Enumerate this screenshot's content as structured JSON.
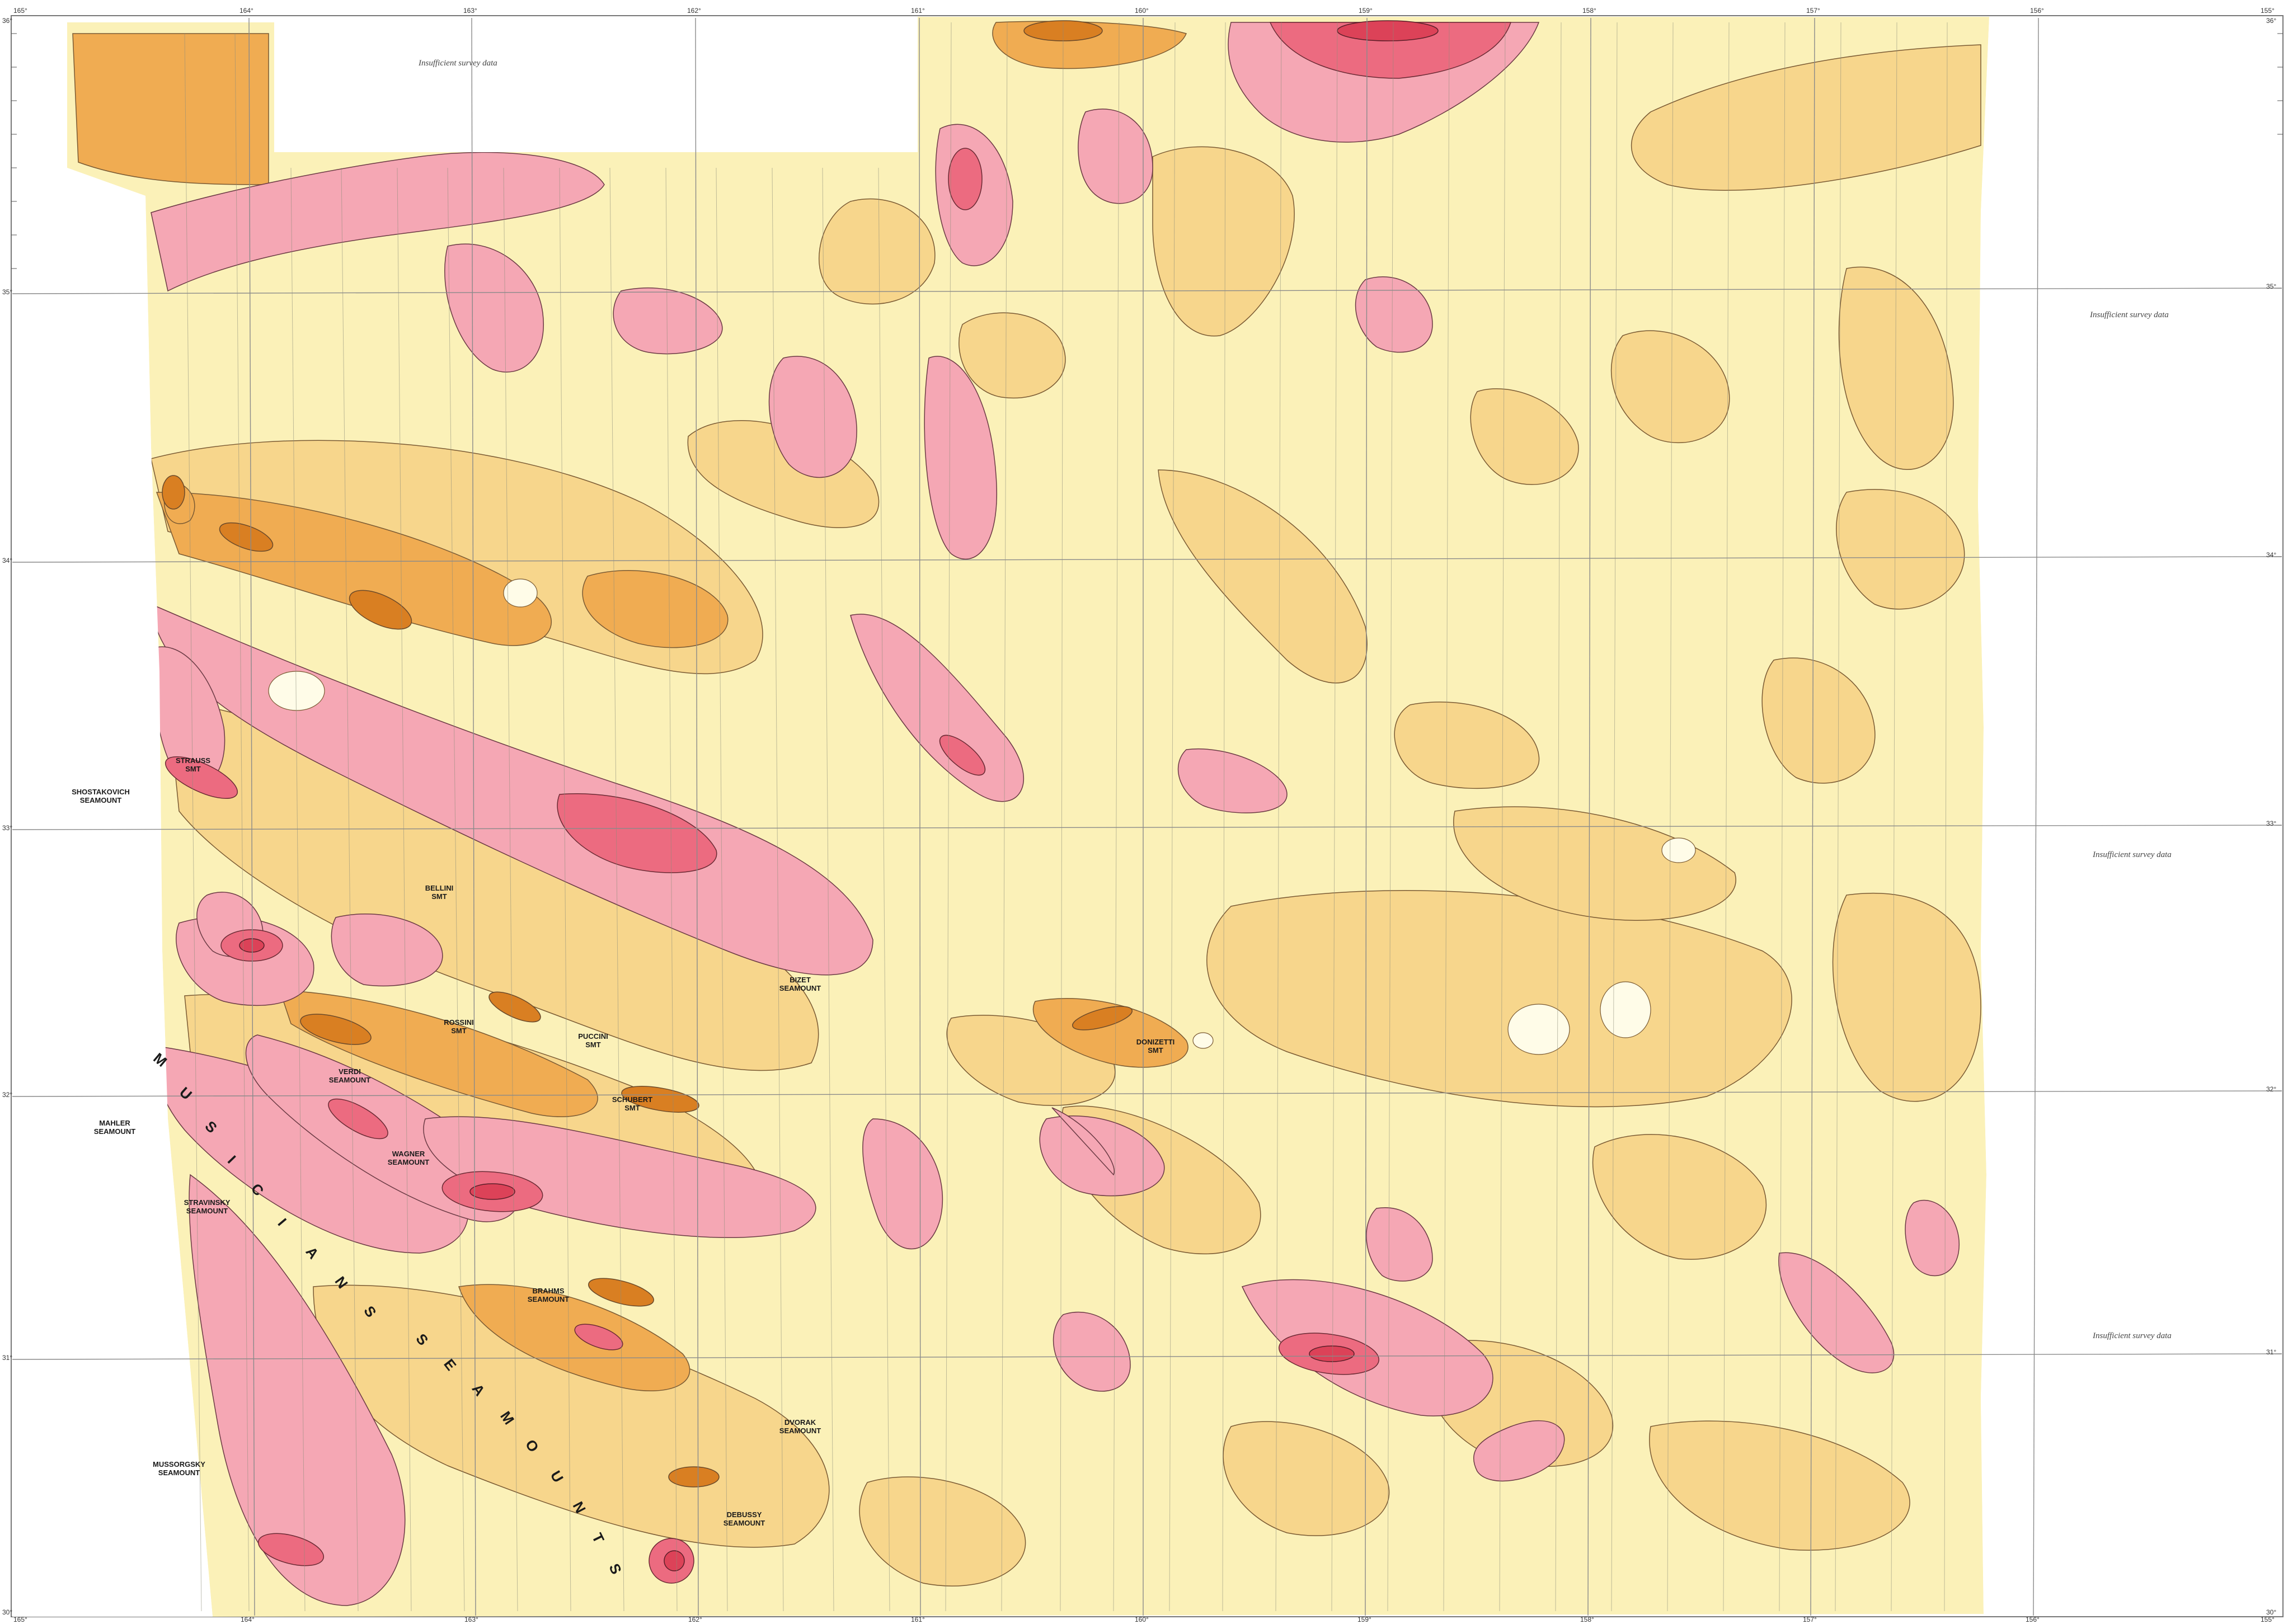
{
  "map": {
    "region_label": "MUSICIANS SEAMOUNTS",
    "region_letters": [
      "M",
      "U",
      "S",
      "I",
      "C",
      "I",
      "A",
      "N",
      "S",
      "S",
      "E",
      "A",
      "M",
      "O",
      "U",
      "N",
      "T",
      "S"
    ],
    "insufficient_note": "Insufficient survey data",
    "seamounts": [
      "SHOSTAKOVICH SEAMOUNT",
      "STRAUSS SMT",
      "BELLINI SMT",
      "BIZET SEAMOUNT",
      "ROSSINI SMT",
      "PUCCINI SMT",
      "VERDI SEAMOUNT",
      "SCHUBERT SMT",
      "MAHLER SEAMOUNT",
      "WAGNER SEAMOUNT",
      "STRAVINSKY SEAMOUNT",
      "BRAHMS SEAMOUNT",
      "DONIZETTI SMT",
      "DVORAK SEAMOUNT",
      "MUSSORGSKY SEAMOUNT",
      "DEBUSSY SEAMOUNT"
    ],
    "longitudes_top": [
      "165°",
      "164°",
      "163°",
      "162°",
      "161°",
      "160°",
      "159°",
      "158°",
      "157°",
      "156°",
      "155°"
    ],
    "longitudes_bottom": [
      "165°",
      "164°",
      "163°",
      "162°",
      "161°",
      "160°",
      "159°",
      "158°",
      "157°",
      "156°",
      "155°"
    ],
    "latitudes_left": [
      "36°",
      "35°",
      "34°",
      "33°",
      "32°",
      "31°",
      "30°"
    ],
    "latitudes_right": [
      "36°",
      "35°",
      "34°",
      "33°",
      "32°",
      "31°",
      "30°"
    ],
    "colors": {
      "background": "#fffce8",
      "pale_yellow": "#fbf1b8",
      "light_orange": "#f7d68c",
      "orange": "#f0ac52",
      "dark_orange": "#d97f22",
      "pink": "#f5a7b4",
      "red_pink": "#ec6b80",
      "deep_red": "#dc4258",
      "grid": "#8a8a8a",
      "contour": "#6b4a2a"
    }
  }
}
